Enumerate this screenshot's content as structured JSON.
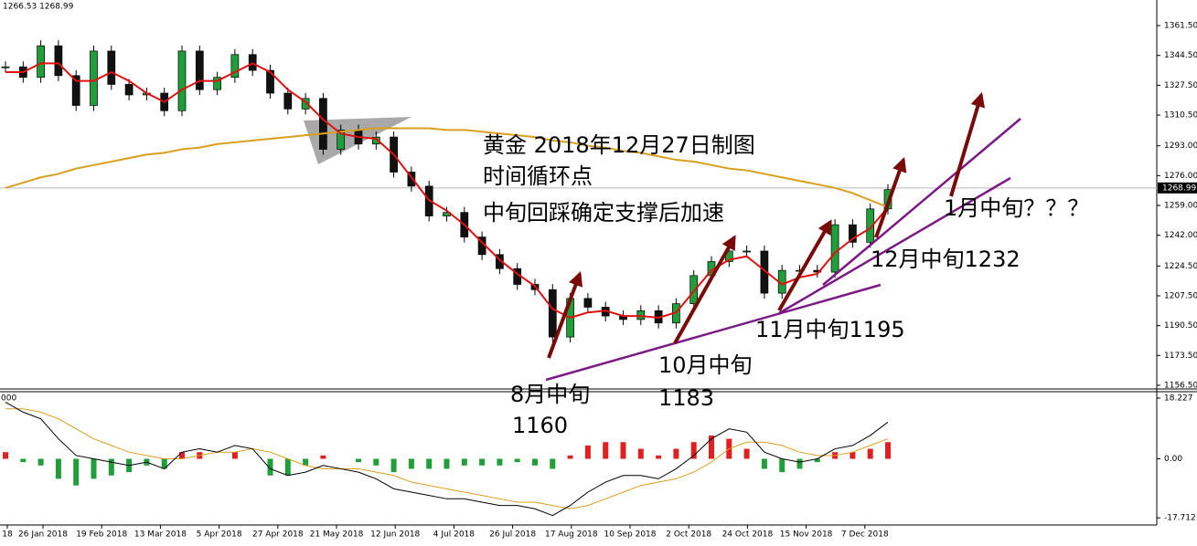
{
  "chart_data": {
    "type": "candlestick",
    "header": "1266.53 1268.99",
    "indicator_label": "000",
    "annotations": [
      "黄金 2018年12月27日制图",
      "时间循环点",
      "中旬回踩确定支撑后加速",
      "8月中旬",
      "1160",
      "10月中旬",
      "1183",
      "11月中旬1195",
      "12月中旬1232",
      "1月中旬？？？"
    ],
    "categories": [
      "18",
      "26 Jan 2018",
      "19 Feb 2018",
      "13 Mar 2018",
      "5 Apr 2018",
      "27 Apr 2018",
      "21 May 2018",
      "12 Jun 2018",
      "4 Jul 2018",
      "26 Jul 2018",
      "17 Aug 2018",
      "10 Sep 2018",
      "2 Oct 2018",
      "24 Oct 2018",
      "15 Nov 2018",
      "7 Dec 2018"
    ],
    "close": [
      1338,
      1332,
      1350,
      1333,
      1316,
      1347,
      1328,
      1322,
      1323,
      1313,
      1347,
      1325,
      1332,
      1345,
      1336,
      1323,
      1314,
      1320,
      1291,
      1302,
      1294,
      1298,
      1278,
      1270,
      1253,
      1255,
      1241,
      1231,
      1223,
      1214,
      1211,
      1184,
      1206,
      1201,
      1196,
      1194,
      1199,
      1192,
      1203,
      1219,
      1227,
      1233,
      1233,
      1209,
      1222,
      1222,
      1221,
      1248,
      1238,
      1257,
      1268
    ],
    "fast_ma": [
      1335,
      1335,
      1340,
      1340,
      1330,
      1330,
      1335,
      1330,
      1323,
      1318,
      1325,
      1330,
      1330,
      1335,
      1340,
      1335,
      1325,
      1318,
      1308,
      1300,
      1298,
      1297,
      1288,
      1275,
      1262,
      1256,
      1248,
      1238,
      1228,
      1220,
      1213,
      1200,
      1195,
      1198,
      1199,
      1196,
      1196,
      1195,
      1198,
      1210,
      1222,
      1228,
      1230,
      1222,
      1214,
      1218,
      1220,
      1232,
      1240,
      1246,
      1258
    ],
    "slow_ma": [
      1269,
      1272,
      1275,
      1277,
      1280,
      1282,
      1284,
      1286,
      1288,
      1289,
      1291,
      1292,
      1294,
      1295,
      1296,
      1297,
      1298,
      1299,
      1300,
      1301,
      1302,
      1303,
      1303,
      1303,
      1303,
      1302,
      1302,
      1301,
      1300,
      1299,
      1298,
      1296,
      1295,
      1293,
      1292,
      1290,
      1289,
      1287,
      1285,
      1284,
      1282,
      1280,
      1279,
      1277,
      1275,
      1273,
      1271,
      1269,
      1266,
      1262,
      1258
    ],
    "last_price": 1268.99,
    "ylim": [
      1154.4,
      1376.1
    ],
    "yticks": [
      {
        "value": 1361.5,
        "label": "1361.50"
      },
      {
        "value": 1344.5,
        "label": "1344.50"
      },
      {
        "value": 1327.5,
        "label": "1327.50"
      },
      {
        "value": 1310.5,
        "label": "1310.50"
      },
      {
        "value": 1293,
        "label": "1293.00"
      },
      {
        "value": 1276,
        "label": "1276.00"
      },
      {
        "value": 1259,
        "label": "1259.00"
      },
      {
        "value": 1242,
        "label": "1242.00"
      },
      {
        "value": 1224.5,
        "label": "1224.50"
      },
      {
        "value": 1207.5,
        "label": "1207.50"
      },
      {
        "value": 1190.5,
        "label": "1190.50"
      },
      {
        "value": 1173.5,
        "label": "1173.50"
      },
      {
        "value": 1156.5,
        "label": "1156.50"
      }
    ],
    "macd": [
      17,
      14,
      12,
      6,
      1,
      0,
      -1,
      -2,
      -1,
      -3,
      2,
      3,
      2,
      4,
      3,
      -3,
      -5,
      -4,
      -2,
      -3,
      -4,
      -6,
      -9,
      -10,
      -11,
      -12,
      -12,
      -13,
      -14,
      -14,
      -15,
      -17,
      -14,
      -10,
      -7,
      -5,
      -5,
      -6,
      -3,
      1,
      6,
      9,
      8,
      2,
      0,
      -1,
      0,
      3,
      4,
      7,
      11
    ],
    "signal": [
      15,
      15,
      14,
      12,
      9,
      6,
      4,
      2,
      1,
      0,
      0,
      1,
      2,
      2,
      3,
      2,
      0,
      -2,
      -3,
      -3,
      -3,
      -4,
      -5,
      -7,
      -8,
      -9,
      -10,
      -11,
      -12,
      -13,
      -13,
      -14,
      -15,
      -14,
      -12,
      -10,
      -8,
      -7,
      -6,
      -4,
      -1,
      3,
      5,
      5,
      4,
      2,
      1,
      1,
      2,
      4,
      6
    ],
    "histogram": [
      2,
      -1,
      -2,
      -6,
      -8,
      -6,
      -5,
      -4,
      -2,
      -3,
      2,
      2,
      0,
      2,
      0,
      -5,
      -5,
      -2,
      1,
      0,
      -1,
      -2,
      -4,
      -3,
      -3,
      -3,
      -2,
      -2,
      -2,
      -1,
      -2,
      -3,
      1,
      4,
      5,
      5,
      3,
      1,
      3,
      5,
      7,
      6,
      3,
      -3,
      -4,
      -3,
      -1,
      2,
      2,
      3,
      5
    ],
    "y2lim": [
      -19.86,
      20.13
    ],
    "y2ticks": [
      18.227,
      {
        "value": 0,
        "label": "0.00"
      },
      -17.712
    ],
    "colors": {
      "up": "#1f9e3a",
      "down": "#111111",
      "fast_ma": "#e01010",
      "slow_ma": "#d9a020",
      "macd": "#000000",
      "signal": "#d9a020",
      "hist_up": "#e02020",
      "hist_down": "#1f9e3a"
    }
  }
}
